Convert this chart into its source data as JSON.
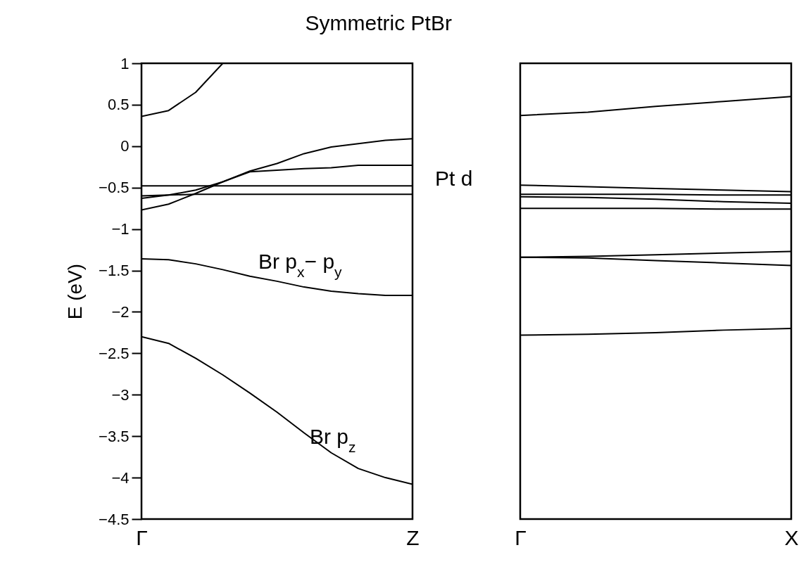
{
  "chart_data": [
    {
      "type": "line",
      "title": "Symmetric PtBr",
      "ylabel": "E (eV)",
      "categories": [
        "Γ",
        null,
        null,
        null,
        null,
        null,
        null,
        null,
        null,
        null,
        "Z"
      ],
      "ylim": [
        -4.5,
        1
      ],
      "yticks": [
        -4.5,
        -4,
        -3.5,
        -3,
        -2.5,
        -2,
        -1.5,
        -1,
        -0.5,
        0,
        0.5,
        1
      ],
      "series": [
        {
          "color": "#000000",
          "values": [
            0.36,
            0.43,
            0.65,
            1.0,
            null,
            null,
            null,
            null,
            null,
            null,
            null
          ]
        },
        {
          "color": "#000000",
          "values": [
            -0.77,
            -0.7,
            -0.57,
            -0.43,
            -0.3,
            -0.21,
            -0.09,
            -0.01,
            0.03,
            0.07,
            0.09
          ]
        },
        {
          "color": "#000000",
          "values": [
            -0.63,
            -0.59,
            -0.53,
            -0.43,
            -0.31,
            -0.29,
            -0.27,
            -0.26,
            -0.23,
            -0.23,
            -0.23
          ]
        },
        {
          "color": "#000000",
          "values": [
            -0.48,
            -0.48,
            -0.48,
            -0.48,
            -0.48,
            -0.48,
            -0.48,
            -0.48,
            -0.48,
            -0.48,
            -0.48
          ]
        },
        {
          "color": "#000000",
          "values": [
            -0.6,
            -0.59,
            -0.58,
            -0.58,
            -0.58,
            -0.58,
            -0.58,
            -0.58,
            -0.58,
            -0.58,
            -0.58
          ]
        },
        {
          "color": "#000000",
          "values": [
            -1.36,
            -1.37,
            -1.42,
            -1.49,
            -1.57,
            -1.63,
            -1.7,
            -1.75,
            -1.78,
            -1.8,
            -1.8
          ]
        },
        {
          "color": "#000000",
          "values": [
            -2.3,
            -2.38,
            -2.56,
            -2.76,
            -2.98,
            -3.21,
            -3.46,
            -3.7,
            -3.89,
            -4.0,
            -4.08
          ]
        }
      ],
      "annotations": [
        "Br p$_{x}$− p$_{y}$",
        "Br p$_{z}$",
        "Pt d"
      ]
    },
    {
      "type": "line",
      "tick_labels": "x",
      "categories": [
        "Γ",
        null,
        null,
        null,
        "X"
      ],
      "ylim": [
        -4.5,
        1
      ],
      "yticks": [
        -4.5,
        -4,
        -3.5,
        -3,
        -2.5,
        -2,
        -1.5,
        -1,
        -0.5,
        0,
        0.5,
        1
      ],
      "series": [
        {
          "color": "#000000",
          "values": [
            0.37,
            0.41,
            0.48,
            0.54,
            0.6
          ]
        },
        {
          "color": "#000000",
          "values": [
            -0.47,
            -0.49,
            -0.51,
            -0.53,
            -0.55
          ]
        },
        {
          "color": "#000000",
          "values": [
            -0.58,
            -0.58,
            -0.58,
            -0.59,
            -0.59
          ]
        },
        {
          "color": "#000000",
          "values": [
            -0.61,
            -0.62,
            -0.64,
            -0.67,
            -0.69
          ]
        },
        {
          "color": "#000000",
          "values": [
            -0.75,
            -0.75,
            -0.75,
            -0.76,
            -0.76
          ]
        },
        {
          "color": "#000000",
          "values": [
            -1.34,
            -1.33,
            -1.31,
            -1.29,
            -1.27
          ]
        },
        {
          "color": "#000000",
          "values": [
            -1.34,
            -1.35,
            -1.38,
            -1.41,
            -1.44
          ]
        },
        {
          "color": "#000000",
          "values": [
            -2.28,
            -2.27,
            -2.25,
            -2.22,
            -2.2
          ]
        }
      ]
    }
  ]
}
